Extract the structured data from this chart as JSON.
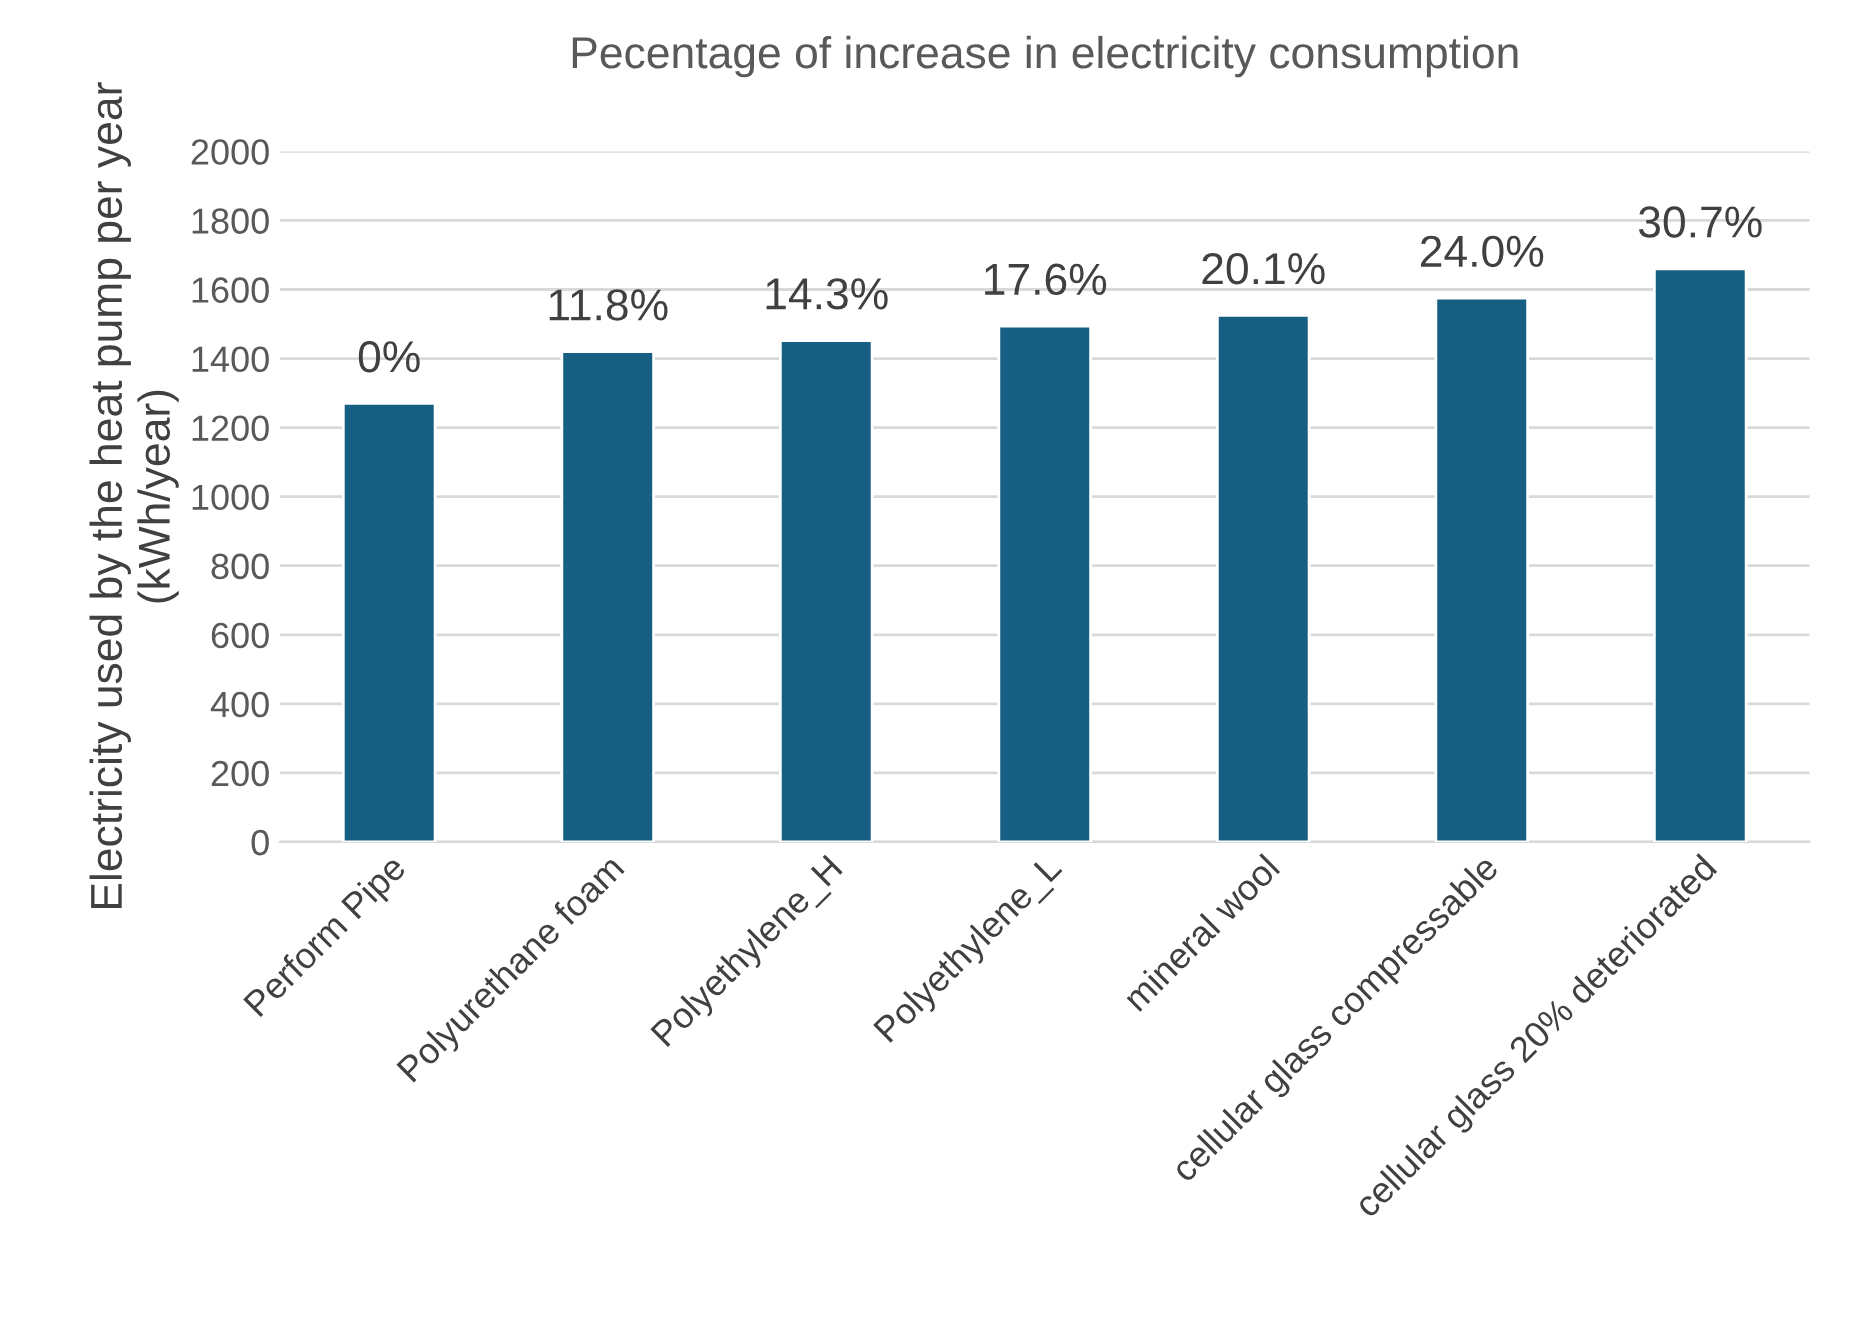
{
  "chart_data": {
    "type": "bar",
    "title": "Pecentage of increase in electricity consumption",
    "ylabel": "Electricity used by the heat pump per year\n(kWh/year)",
    "categories": [
      "Perform Pipe",
      "Polyurethane foam",
      "Polyethylene_H",
      "Polyethylene_L",
      "mineral wool",
      "cellular glass compressable",
      "cellular glass 20% deteriorated"
    ],
    "values": [
      1270,
      1420,
      1452,
      1494,
      1525,
      1575,
      1660
    ],
    "annotations": [
      {
        "text": "0%",
        "x": "Perform Pipe",
        "y": 1270
      },
      {
        "text": "11.8%",
        "x": "Polyurethane foam",
        "y": 1420
      },
      {
        "text": "14.3%",
        "x": "Polyethylene_H",
        "y": 1452
      },
      {
        "text": "17.6%",
        "x": "Polyethylene_L",
        "y": 1494
      },
      {
        "text": "20.1%",
        "x": "mineral wool",
        "y": 1525
      },
      {
        "text": "24.0%",
        "x": "cellular glass compressable",
        "y": 1575
      },
      {
        "text": "30.7%",
        "x": "cellular glass 20% deteriorated",
        "y": 1660
      }
    ],
    "color": "#165f82",
    "ylim": [
      0,
      2000
    ],
    "yticks": [
      0,
      200,
      400,
      600,
      800,
      1000,
      1200,
      1400,
      1600,
      1800,
      2000
    ],
    "grid": "y",
    "legend": false
  }
}
